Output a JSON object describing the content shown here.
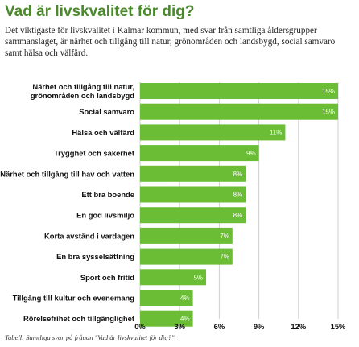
{
  "title": "Vad är livskvalitet för dig?",
  "intro": "Det viktigaste för livskvalitet i Kalmar kommun, med svar från samtliga åldersgrupper sammanslaget, är närhet och tillgång till natur, grönområden och landsbygd, social samvaro samt hälsa och välfärd.",
  "caption": "Tabell: Samtliga svar på frågan \"Vad är livskvalitet för dig?\".",
  "colors": {
    "bar": "#6cbd36",
    "title": "#4a8a2a",
    "grid": "#cfcfcf"
  },
  "chart_data": {
    "type": "bar",
    "orientation": "horizontal",
    "categories": [
      "Närhet och tillgång till natur, grönområden och landsbygd",
      "Social samvaro",
      "Hälsa och välfärd",
      "Trygghet och säkerhet",
      "Närhet och tillgång till hav och vatten",
      "Ett bra boende",
      "En god livsmiljö",
      "Korta avstånd i vardagen",
      "En bra sysselsättning",
      "Sport och fritid",
      "Tillgång till kultur och evenemang",
      "Rörelsefrihet och tillgänglighet"
    ],
    "category_lines": [
      [
        "Närhet och tillgång till natur,",
        "grönområden och landsbygd"
      ],
      [
        "Social samvaro"
      ],
      [
        "Hälsa och välfärd"
      ],
      [
        "Trygghet och säkerhet"
      ],
      [
        "Närhet och tillgång till hav och vatten"
      ],
      [
        "Ett bra boende"
      ],
      [
        "En god livsmiljö"
      ],
      [
        "Korta avstånd i vardagen"
      ],
      [
        "En bra sysselsättning"
      ],
      [
        "Sport och fritid"
      ],
      [
        "Tillgång till kultur och evenemang"
      ],
      [
        "Rörelsefrihet och tillgänglighet"
      ]
    ],
    "values": [
      15,
      15,
      11,
      9,
      8,
      8,
      8,
      7,
      7,
      5,
      4,
      4
    ],
    "value_labels": [
      "15%",
      "15%",
      "11%",
      "9%",
      "8%",
      "8%",
      "8%",
      "7%",
      "7%",
      "5%",
      "4%",
      "4%"
    ],
    "xlim": [
      0,
      15
    ],
    "xticks": [
      0,
      3,
      6,
      9,
      12,
      15
    ],
    "xtick_labels": [
      "0%",
      "3%",
      "6%",
      "9%",
      "12%",
      "15%"
    ],
    "grid": true,
    "legend": "none"
  }
}
